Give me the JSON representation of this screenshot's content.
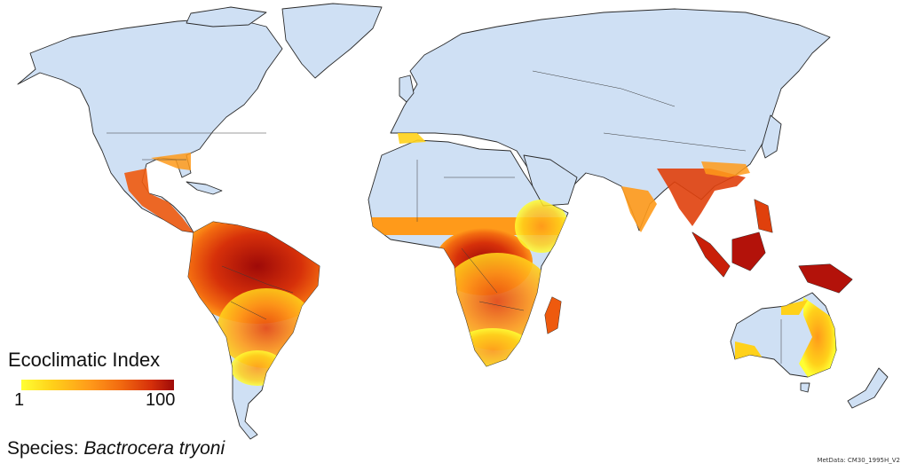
{
  "legend": {
    "title": "Ecoclimatic Index",
    "min_label": "1",
    "max_label": "100",
    "gradient_colors": [
      "#ffff33",
      "#ffd11a",
      "#ff9a1a",
      "#f26a10",
      "#d6300a",
      "#9e0a08"
    ]
  },
  "species": {
    "prefix": "Species:",
    "name": "Bactrocera tryoni"
  },
  "credit": "MetData: CM30_1995H_V2",
  "colors": {
    "land": "#cfe0f4",
    "ocean": "#ffffff",
    "coast": "#2a2a2a"
  }
}
